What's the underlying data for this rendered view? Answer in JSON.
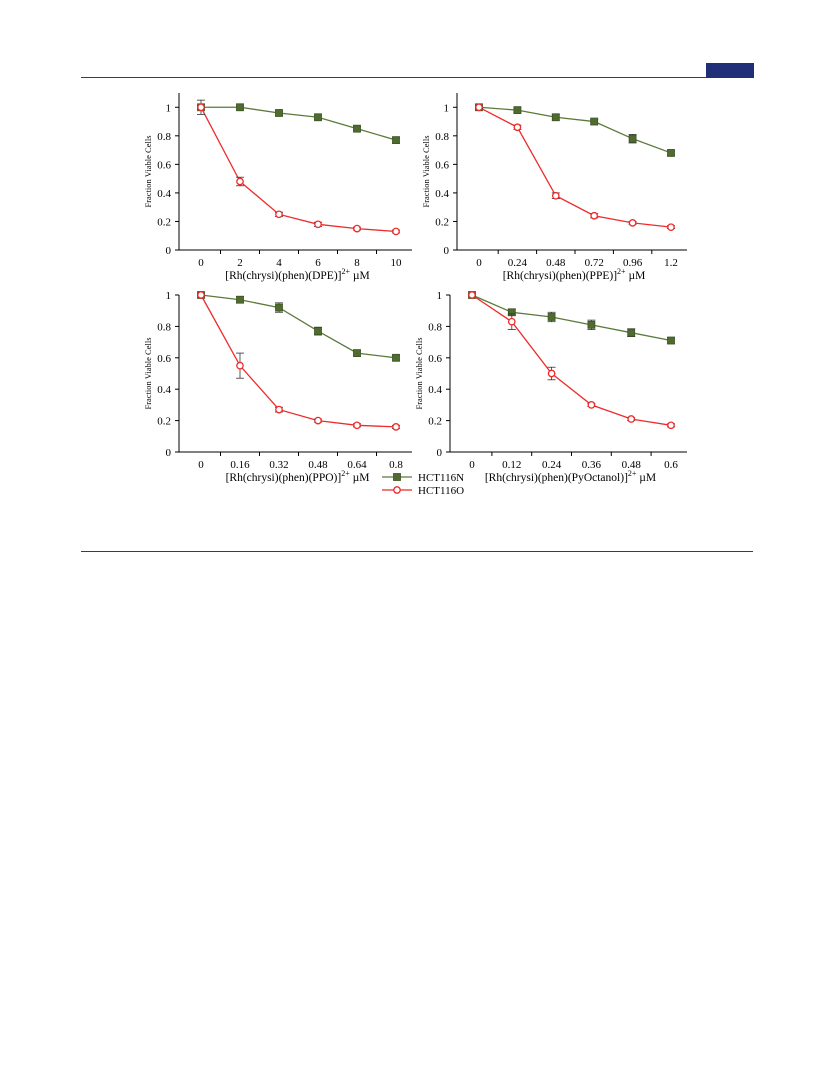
{
  "colors": {
    "header_rule": "#2d3a78",
    "header_tab": "#1f2f78",
    "hct116n": "#5a7a3a",
    "hct116o": "#ee2b2b"
  },
  "legend": {
    "series": [
      "HCT116N",
      "HCT116O"
    ]
  },
  "chart_data": [
    {
      "type": "line",
      "ylabel": "Fraction Viable Cells",
      "xlabel_main": "[Rh(chrysi)(phen)(DPE)]",
      "xlabel_sup": "2+",
      "xlabel_unit": " µM",
      "x": [
        0,
        2,
        4,
        6,
        8,
        10
      ],
      "x_ticks": [
        "0",
        "2",
        "4",
        "6",
        "8",
        "10"
      ],
      "y_ticks": [
        "0",
        "0.2",
        "0.4",
        "0.6",
        "0.8",
        "1"
      ],
      "ylim": [
        0,
        1.1
      ],
      "series": [
        {
          "name": "HCT116N",
          "values": [
            1.0,
            1.0,
            0.96,
            0.93,
            0.85,
            0.77
          ],
          "err": [
            0.01,
            0.01,
            0.015,
            0.015,
            0.015,
            0.02
          ]
        },
        {
          "name": "HCT116O",
          "values": [
            1.0,
            0.48,
            0.25,
            0.18,
            0.15,
            0.13
          ],
          "err": [
            0.05,
            0.03,
            0.015,
            0.015,
            0.01,
            0.01
          ]
        }
      ]
    },
    {
      "type": "line",
      "ylabel": "Fraction Viable Cells",
      "xlabel_main": "[Rh(chrysi)(phen)(PPE)]",
      "xlabel_sup": "2+",
      "xlabel_unit": " µM",
      "x": [
        0,
        0.24,
        0.48,
        0.72,
        0.96,
        1.2
      ],
      "x_ticks": [
        "0",
        "0.24",
        "0.48",
        "0.72",
        "0.96",
        "1.2"
      ],
      "y_ticks": [
        "0",
        "0.2",
        "0.4",
        "0.6",
        "0.8",
        "1"
      ],
      "ylim": [
        0,
        1.1
      ],
      "series": [
        {
          "name": "HCT116N",
          "values": [
            1.0,
            0.98,
            0.93,
            0.9,
            0.78,
            0.68
          ],
          "err": [
            0.01,
            0.015,
            0.02,
            0.015,
            0.03,
            0.015
          ]
        },
        {
          "name": "HCT116O",
          "values": [
            1.0,
            0.86,
            0.38,
            0.24,
            0.19,
            0.16
          ],
          "err": [
            0.01,
            0.015,
            0.02,
            0.015,
            0.01,
            0.01
          ]
        }
      ]
    },
    {
      "type": "line",
      "ylabel": "Fraction Viable Cells",
      "xlabel_main": "[Rh(chrysi)(phen)(PPO)]",
      "xlabel_sup": "2+",
      "xlabel_unit": " µM",
      "x": [
        0,
        0.16,
        0.32,
        0.48,
        0.64,
        0.8
      ],
      "x_ticks": [
        "0",
        "0.16",
        "0.32",
        "0.48",
        "0.64",
        "0.8"
      ],
      "y_ticks": [
        "0",
        "0.2",
        "0.4",
        "0.6",
        "0.8",
        "1"
      ],
      "ylim": [
        0,
        1
      ],
      "series": [
        {
          "name": "HCT116N",
          "values": [
            1.0,
            0.97,
            0.92,
            0.77,
            0.63,
            0.6
          ],
          "err": [
            0.005,
            0.02,
            0.03,
            0.025,
            0.02,
            0.015
          ]
        },
        {
          "name": "HCT116O",
          "values": [
            1.0,
            0.55,
            0.27,
            0.2,
            0.17,
            0.16
          ],
          "err": [
            0.005,
            0.08,
            0.015,
            0.01,
            0.01,
            0.01
          ]
        }
      ]
    },
    {
      "type": "line",
      "ylabel": "Fraction Viable Cells",
      "xlabel_main": "[Rh(chrysi)(phen)(PyOctanol)]",
      "xlabel_sup": "2+",
      "xlabel_unit": " µM",
      "x": [
        0,
        0.12,
        0.24,
        0.36,
        0.48,
        0.6
      ],
      "x_ticks": [
        "0",
        "0.12",
        "0.24",
        "0.36",
        "0.48",
        "0.6"
      ],
      "y_ticks": [
        "0",
        "0.2",
        "0.4",
        "0.6",
        "0.8",
        "1"
      ],
      "ylim": [
        0,
        1
      ],
      "series": [
        {
          "name": "HCT116N",
          "values": [
            1.0,
            0.89,
            0.86,
            0.81,
            0.76,
            0.71
          ],
          "err": [
            0.005,
            0.02,
            0.03,
            0.03,
            0.025,
            0.02
          ]
        },
        {
          "name": "HCT116O",
          "values": [
            1.0,
            0.83,
            0.5,
            0.3,
            0.21,
            0.17
          ],
          "err": [
            0.005,
            0.05,
            0.04,
            0.01,
            0.01,
            0.01
          ]
        }
      ]
    }
  ]
}
